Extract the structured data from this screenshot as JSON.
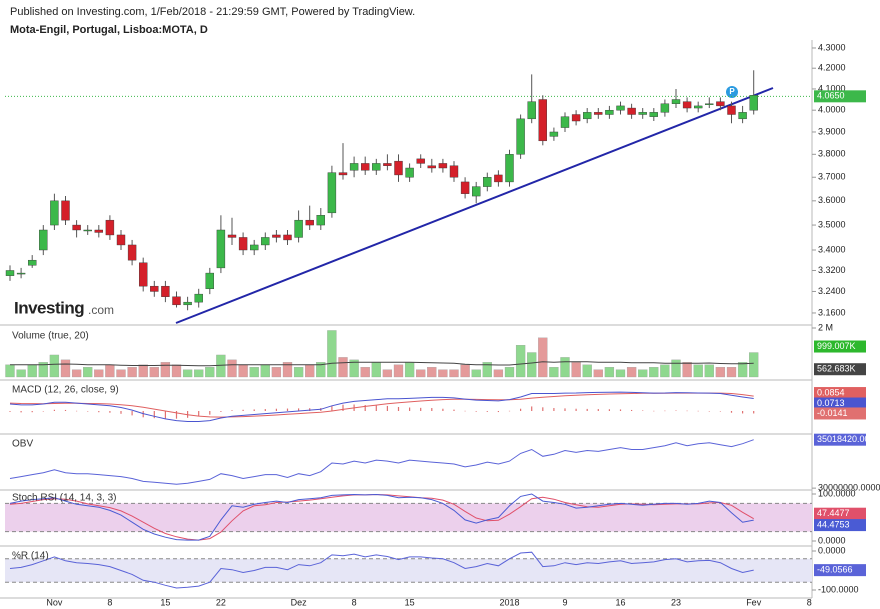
{
  "chart_data": {
    "type": "candlestick",
    "source": "Published on Investing.com, 1/Feb/2018 - 21:29:59 GMT, Powered by TradingView.",
    "title": "Mota-Engil, Portugal, Lisboa:MOTA, D",
    "logo": "Investing",
    "logo_suffix": ".com",
    "marker_label": "P",
    "xticks": [
      {
        "value": 4,
        "label": "Nov"
      },
      {
        "value": 9,
        "label": "8"
      },
      {
        "value": 14,
        "label": "15"
      },
      {
        "value": 19,
        "label": "22"
      },
      {
        "value": 26,
        "label": "Dez"
      },
      {
        "value": 31,
        "label": "8"
      },
      {
        "value": 36,
        "label": "15"
      },
      {
        "value": 45,
        "label": "2018"
      },
      {
        "value": 50,
        "label": "9"
      },
      {
        "value": 55,
        "label": "16"
      },
      {
        "value": 60,
        "label": "23"
      },
      {
        "value": 67,
        "label": "Fev"
      },
      {
        "value": 72,
        "label": "8"
      }
    ],
    "price": {
      "log": true,
      "ylim": [
        3.127,
        4.33
      ],
      "yticks": [
        {
          "value": 4.3,
          "label": "4.3000"
        },
        {
          "value": 4.2,
          "label": "4.2000"
        },
        {
          "value": 4.1,
          "label": "4.1000"
        },
        {
          "value": 4.0,
          "label": "4.0000"
        },
        {
          "value": 3.9,
          "label": "3.9000"
        },
        {
          "value": 3.8,
          "label": "3.8000"
        },
        {
          "value": 3.7,
          "label": "3.7000"
        },
        {
          "value": 3.6,
          "label": "3.6000"
        },
        {
          "value": 3.5,
          "label": "3.5000"
        },
        {
          "value": 3.4,
          "label": "3.4000"
        },
        {
          "value": 3.32,
          "label": "3.3200"
        },
        {
          "value": 3.24,
          "label": "3.2400"
        },
        {
          "value": 3.16,
          "label": "3.1600"
        }
      ],
      "up_color": "#3cb84a",
      "down_color": "#d4202a",
      "last_price": {
        "value": 4.065,
        "label": "4.0650"
      },
      "open": [
        3.3,
        3.31,
        3.34,
        3.4,
        3.5,
        3.6,
        3.5,
        3.48,
        3.48,
        3.52,
        3.46,
        3.42,
        3.35,
        3.26,
        3.26,
        3.22,
        3.19,
        3.2,
        3.25,
        3.33,
        3.46,
        3.45,
        3.4,
        3.42,
        3.46,
        3.46,
        3.45,
        3.52,
        3.5,
        3.55,
        3.72,
        3.73,
        3.76,
        3.73,
        3.76,
        3.77,
        3.7,
        3.78,
        3.75,
        3.76,
        3.75,
        3.68,
        3.62,
        3.66,
        3.71,
        3.68,
        3.8,
        3.96,
        4.05,
        3.88,
        3.92,
        3.98,
        3.96,
        3.99,
        3.98,
        4.0,
        4.01,
        3.98,
        3.97,
        3.99,
        4.03,
        4.04,
        4.01,
        4.03,
        4.04,
        4.02,
        3.96,
        4.0
      ],
      "high": [
        3.34,
        3.33,
        3.38,
        3.5,
        3.63,
        3.62,
        3.52,
        3.5,
        3.5,
        3.54,
        3.48,
        3.44,
        3.37,
        3.28,
        3.28,
        3.24,
        3.22,
        3.25,
        3.33,
        3.54,
        3.53,
        3.47,
        3.44,
        3.47,
        3.48,
        3.48,
        3.56,
        3.58,
        3.57,
        3.75,
        3.85,
        3.79,
        3.79,
        3.78,
        3.8,
        3.8,
        3.76,
        3.8,
        3.78,
        3.78,
        3.77,
        3.7,
        3.68,
        3.72,
        3.73,
        3.82,
        3.98,
        4.17,
        4.07,
        3.92,
        3.99,
        4.0,
        4.01,
        4.01,
        4.02,
        4.04,
        4.03,
        4.01,
        4.01,
        4.05,
        4.1,
        4.06,
        4.04,
        4.06,
        4.06,
        4.04,
        4.02,
        4.19
      ],
      "low": [
        3.28,
        3.29,
        3.33,
        3.38,
        3.48,
        3.5,
        3.45,
        3.46,
        3.45,
        3.44,
        3.4,
        3.34,
        3.24,
        3.22,
        3.2,
        3.18,
        3.17,
        3.18,
        3.23,
        3.31,
        3.42,
        3.38,
        3.38,
        3.4,
        3.43,
        3.42,
        3.43,
        3.48,
        3.48,
        3.53,
        3.69,
        3.7,
        3.71,
        3.71,
        3.73,
        3.68,
        3.68,
        3.74,
        3.72,
        3.72,
        3.68,
        3.61,
        3.59,
        3.64,
        3.66,
        3.66,
        3.78,
        3.94,
        3.84,
        3.86,
        3.9,
        3.93,
        3.94,
        3.96,
        3.96,
        3.98,
        3.96,
        3.96,
        3.95,
        3.97,
        4.01,
        3.99,
        3.99,
        4.01,
        4.0,
        3.94,
        3.94,
        3.98
      ],
      "close": [
        3.32,
        3.31,
        3.36,
        3.48,
        3.6,
        3.52,
        3.48,
        3.48,
        3.47,
        3.46,
        3.42,
        3.36,
        3.26,
        3.24,
        3.22,
        3.19,
        3.2,
        3.23,
        3.31,
        3.48,
        3.45,
        3.4,
        3.42,
        3.45,
        3.45,
        3.44,
        3.52,
        3.5,
        3.54,
        3.72,
        3.71,
        3.76,
        3.73,
        3.76,
        3.75,
        3.71,
        3.74,
        3.76,
        3.74,
        3.74,
        3.7,
        3.63,
        3.66,
        3.7,
        3.68,
        3.8,
        3.96,
        4.04,
        3.86,
        3.9,
        3.97,
        3.95,
        3.99,
        3.98,
        4.0,
        4.02,
        3.98,
        3.99,
        3.99,
        4.03,
        4.05,
        4.01,
        4.02,
        4.03,
        4.02,
        3.98,
        3.99,
        4.07
      ]
    },
    "volume": {
      "title": "Volume (true, 20)",
      "ylim": [
        0,
        2
      ],
      "yticks": [
        {
          "value": 2,
          "label": "2 M"
        }
      ],
      "up_color": "#8fd88f",
      "down_color": "#e49a9a",
      "values": [
        0.5,
        0.3,
        0.5,
        0.6,
        0.9,
        0.7,
        0.3,
        0.4,
        0.3,
        0.5,
        0.3,
        0.4,
        0.5,
        0.4,
        0.6,
        0.5,
        0.3,
        0.3,
        0.4,
        0.9,
        0.7,
        0.5,
        0.4,
        0.5,
        0.4,
        0.6,
        0.4,
        0.5,
        0.6,
        1.9,
        0.8,
        0.7,
        0.4,
        0.6,
        0.3,
        0.5,
        0.6,
        0.3,
        0.4,
        0.3,
        0.3,
        0.5,
        0.3,
        0.6,
        0.3,
        0.4,
        1.3,
        1.0,
        1.6,
        0.4,
        0.8,
        0.6,
        0.5,
        0.3,
        0.4,
        0.3,
        0.4,
        0.3,
        0.4,
        0.5,
        0.7,
        0.6,
        0.5,
        0.5,
        0.4,
        0.4,
        0.6,
        0.999007
      ],
      "last_label": "999.007K",
      "label_color": "#2db82d",
      "ma": {
        "color": "#444444",
        "last_label": "562.683K",
        "values": [
          0.5,
          0.5,
          0.5,
          0.5,
          0.52,
          0.53,
          0.52,
          0.5,
          0.5,
          0.5,
          0.48,
          0.47,
          0.47,
          0.47,
          0.48,
          0.48,
          0.47,
          0.46,
          0.46,
          0.48,
          0.5,
          0.5,
          0.5,
          0.5,
          0.5,
          0.5,
          0.5,
          0.5,
          0.5,
          0.56,
          0.58,
          0.6,
          0.6,
          0.6,
          0.6,
          0.6,
          0.6,
          0.59,
          0.58,
          0.57,
          0.56,
          0.52,
          0.5,
          0.5,
          0.49,
          0.49,
          0.53,
          0.57,
          0.62,
          0.6,
          0.62,
          0.62,
          0.62,
          0.6,
          0.6,
          0.6,
          0.58,
          0.58,
          0.58,
          0.56,
          0.56,
          0.56,
          0.56,
          0.57,
          0.55,
          0.54,
          0.54,
          0.562683
        ]
      }
    },
    "macd": {
      "title": "MACD (12, 26, close, 9)",
      "ylim": [
        -0.12,
        0.16
      ],
      "series": [
        {
          "color": "#e06060",
          "last_label": "0.0854",
          "values": [
            0.045,
            0.043,
            0.042,
            0.041,
            0.043,
            0.044,
            0.044,
            0.043,
            0.042,
            0.04,
            0.036,
            0.03,
            0.021,
            0.011,
            0.0,
            -0.011,
            -0.021,
            -0.029,
            -0.034,
            -0.035,
            -0.034,
            -0.032,
            -0.029,
            -0.026,
            -0.023,
            -0.019,
            -0.015,
            -0.011,
            -0.007,
            0.0,
            0.009,
            0.018,
            0.026,
            0.034,
            0.041,
            0.047,
            0.052,
            0.057,
            0.061,
            0.065,
            0.067,
            0.067,
            0.066,
            0.065,
            0.064,
            0.064,
            0.067,
            0.074,
            0.079,
            0.083,
            0.087,
            0.09,
            0.093,
            0.095,
            0.097,
            0.099,
            0.1,
            0.101,
            0.101,
            0.101,
            0.102,
            0.102,
            0.102,
            0.102,
            0.102,
            0.1,
            0.094,
            0.0854
          ]
        },
        {
          "color": "#4a55d0",
          "last_label": "0.0713",
          "values": [
            0.04,
            0.035,
            0.035,
            0.04,
            0.05,
            0.05,
            0.045,
            0.04,
            0.035,
            0.03,
            0.02,
            0.005,
            -0.015,
            -0.03,
            -0.045,
            -0.055,
            -0.06,
            -0.06,
            -0.055,
            -0.04,
            -0.03,
            -0.025,
            -0.02,
            -0.015,
            -0.01,
            -0.005,
            0.0,
            0.005,
            0.01,
            0.03,
            0.045,
            0.055,
            0.06,
            0.065,
            0.07,
            0.07,
            0.072,
            0.075,
            0.078,
            0.078,
            0.075,
            0.068,
            0.062,
            0.06,
            0.058,
            0.065,
            0.08,
            0.1,
            0.1,
            0.1,
            0.102,
            0.103,
            0.105,
            0.106,
            0.107,
            0.108,
            0.106,
            0.104,
            0.102,
            0.103,
            0.105,
            0.104,
            0.103,
            0.102,
            0.1,
            0.09,
            0.08,
            0.0713
          ]
        }
      ],
      "histogram": {
        "color": "#e07070",
        "last_label": "-0.0141",
        "values": [
          -0.005,
          -0.008,
          -0.007,
          -0.001,
          0.007,
          0.006,
          0.001,
          -0.003,
          -0.007,
          -0.01,
          -0.016,
          -0.025,
          -0.036,
          -0.041,
          -0.045,
          -0.044,
          -0.039,
          -0.031,
          -0.021,
          -0.005,
          0.004,
          0.007,
          0.009,
          0.011,
          0.013,
          0.014,
          0.015,
          0.016,
          0.017,
          0.03,
          0.036,
          0.037,
          0.034,
          0.031,
          0.029,
          0.023,
          0.02,
          0.018,
          0.017,
          0.013,
          0.008,
          0.001,
          -0.004,
          -0.005,
          -0.006,
          0.001,
          0.013,
          0.026,
          0.021,
          0.017,
          0.015,
          0.013,
          0.012,
          0.011,
          0.01,
          0.009,
          0.006,
          0.003,
          0.001,
          0.002,
          0.003,
          0.002,
          0.001,
          0,
          -0.002,
          -0.01,
          -0.014,
          -0.0141
        ]
      }
    },
    "obv": {
      "title": "OBV",
      "ylim": [
        29600000,
        35400000
      ],
      "yticks": [
        {
          "value": 30000000,
          "label": "30000000.0000"
        }
      ],
      "series": [
        {
          "color": "#5a63d8",
          "last_label": "35018420.0000",
          "values": [
            31000000,
            31200000,
            31400000,
            31600000,
            31900000,
            31600000,
            31500000,
            31500000,
            31400000,
            31300000,
            31200000,
            31000000,
            30700000,
            30600000,
            30500000,
            30400000,
            30500000,
            30700000,
            30900000,
            31500000,
            31300000,
            31000000,
            31200000,
            31400000,
            31400000,
            31100000,
            31500000,
            31300000,
            31700000,
            32600000,
            32500000,
            32800000,
            32600000,
            32900000,
            32800000,
            32600000,
            32900000,
            32800000,
            32700000,
            32600000,
            32500000,
            32200000,
            32400000,
            32700000,
            32500000,
            32800000,
            33600000,
            34000000,
            33300000,
            33500000,
            33900000,
            33700000,
            33900000,
            33800000,
            34000000,
            34200000,
            34000000,
            34000000,
            34200000,
            34400000,
            34700000,
            34400000,
            34600000,
            34700000,
            34500000,
            34300000,
            34600000,
            35018420
          ]
        }
      ]
    },
    "stoch": {
      "title": "Stoch RSI (14, 14, 3, 3)",
      "ylim": [
        0,
        100
      ],
      "yticks": [
        {
          "value": 100,
          "label": "100.0000"
        },
        {
          "value": 0,
          "label": "0.0000"
        }
      ],
      "band": [
        20,
        80
      ],
      "band_color": "#ecd0ec",
      "series": [
        {
          "color": "#e0506a",
          "last_label": "47.4477",
          "values": [
            78,
            80,
            84,
            88,
            90,
            89,
            85,
            79,
            75,
            71,
            64,
            53,
            40,
            27,
            16,
            9,
            4,
            2,
            5,
            19,
            43,
            64,
            75,
            77,
            82,
            83,
            85,
            87,
            90,
            93,
            96,
            98,
            98,
            99,
            98,
            96,
            94,
            92,
            91,
            87,
            78,
            63,
            49,
            43,
            44,
            57,
            73,
            90,
            93,
            89,
            82,
            77,
            73,
            72,
            75,
            78,
            79,
            78,
            77,
            78,
            79,
            79,
            79,
            81,
            82,
            76,
            61,
            47.4477
          ]
        },
        {
          "color": "#4a5bd4",
          "last_label": "44.4753",
          "values": [
            80,
            85,
            88,
            90,
            92,
            85,
            78,
            75,
            72,
            65,
            55,
            40,
            25,
            15,
            8,
            3,
            2,
            2,
            10,
            45,
            75,
            72,
            78,
            82,
            85,
            82,
            88,
            90,
            92,
            97,
            98,
            99,
            98,
            99,
            97,
            92,
            93,
            92,
            88,
            80,
            65,
            45,
            38,
            45,
            50,
            75,
            95,
            100,
            85,
            82,
            78,
            70,
            72,
            75,
            78,
            80,
            78,
            76,
            78,
            80,
            80,
            78,
            80,
            85,
            82,
            60,
            40,
            44.4753
          ]
        }
      ]
    },
    "willr": {
      "title": "%R (14)",
      "ylim": [
        -100,
        0
      ],
      "yticks": [
        {
          "value": 0,
          "label": "0.0000"
        },
        {
          "value": -100,
          "label": "-100.0000"
        }
      ],
      "band": [
        -80,
        -20
      ],
      "band_color": "#e6e6f6",
      "series": [
        {
          "color": "#5a63d8",
          "last_label": "-49.0566",
          "values": [
            -45,
            -42,
            -35,
            -25,
            -15,
            -25,
            -30,
            -32,
            -35,
            -40,
            -50,
            -60,
            -75,
            -80,
            -88,
            -95,
            -93,
            -90,
            -80,
            -45,
            -48,
            -55,
            -50,
            -42,
            -42,
            -48,
            -35,
            -38,
            -30,
            -10,
            -12,
            -8,
            -15,
            -10,
            -14,
            -22,
            -15,
            -15,
            -18,
            -20,
            -30,
            -45,
            -40,
            -32,
            -38,
            -20,
            -5,
            -3,
            -40,
            -38,
            -30,
            -35,
            -30,
            -32,
            -28,
            -25,
            -32,
            -30,
            -28,
            -22,
            -20,
            -28,
            -25,
            -24,
            -30,
            -45,
            -55,
            -49.0566
          ]
        }
      ]
    }
  }
}
